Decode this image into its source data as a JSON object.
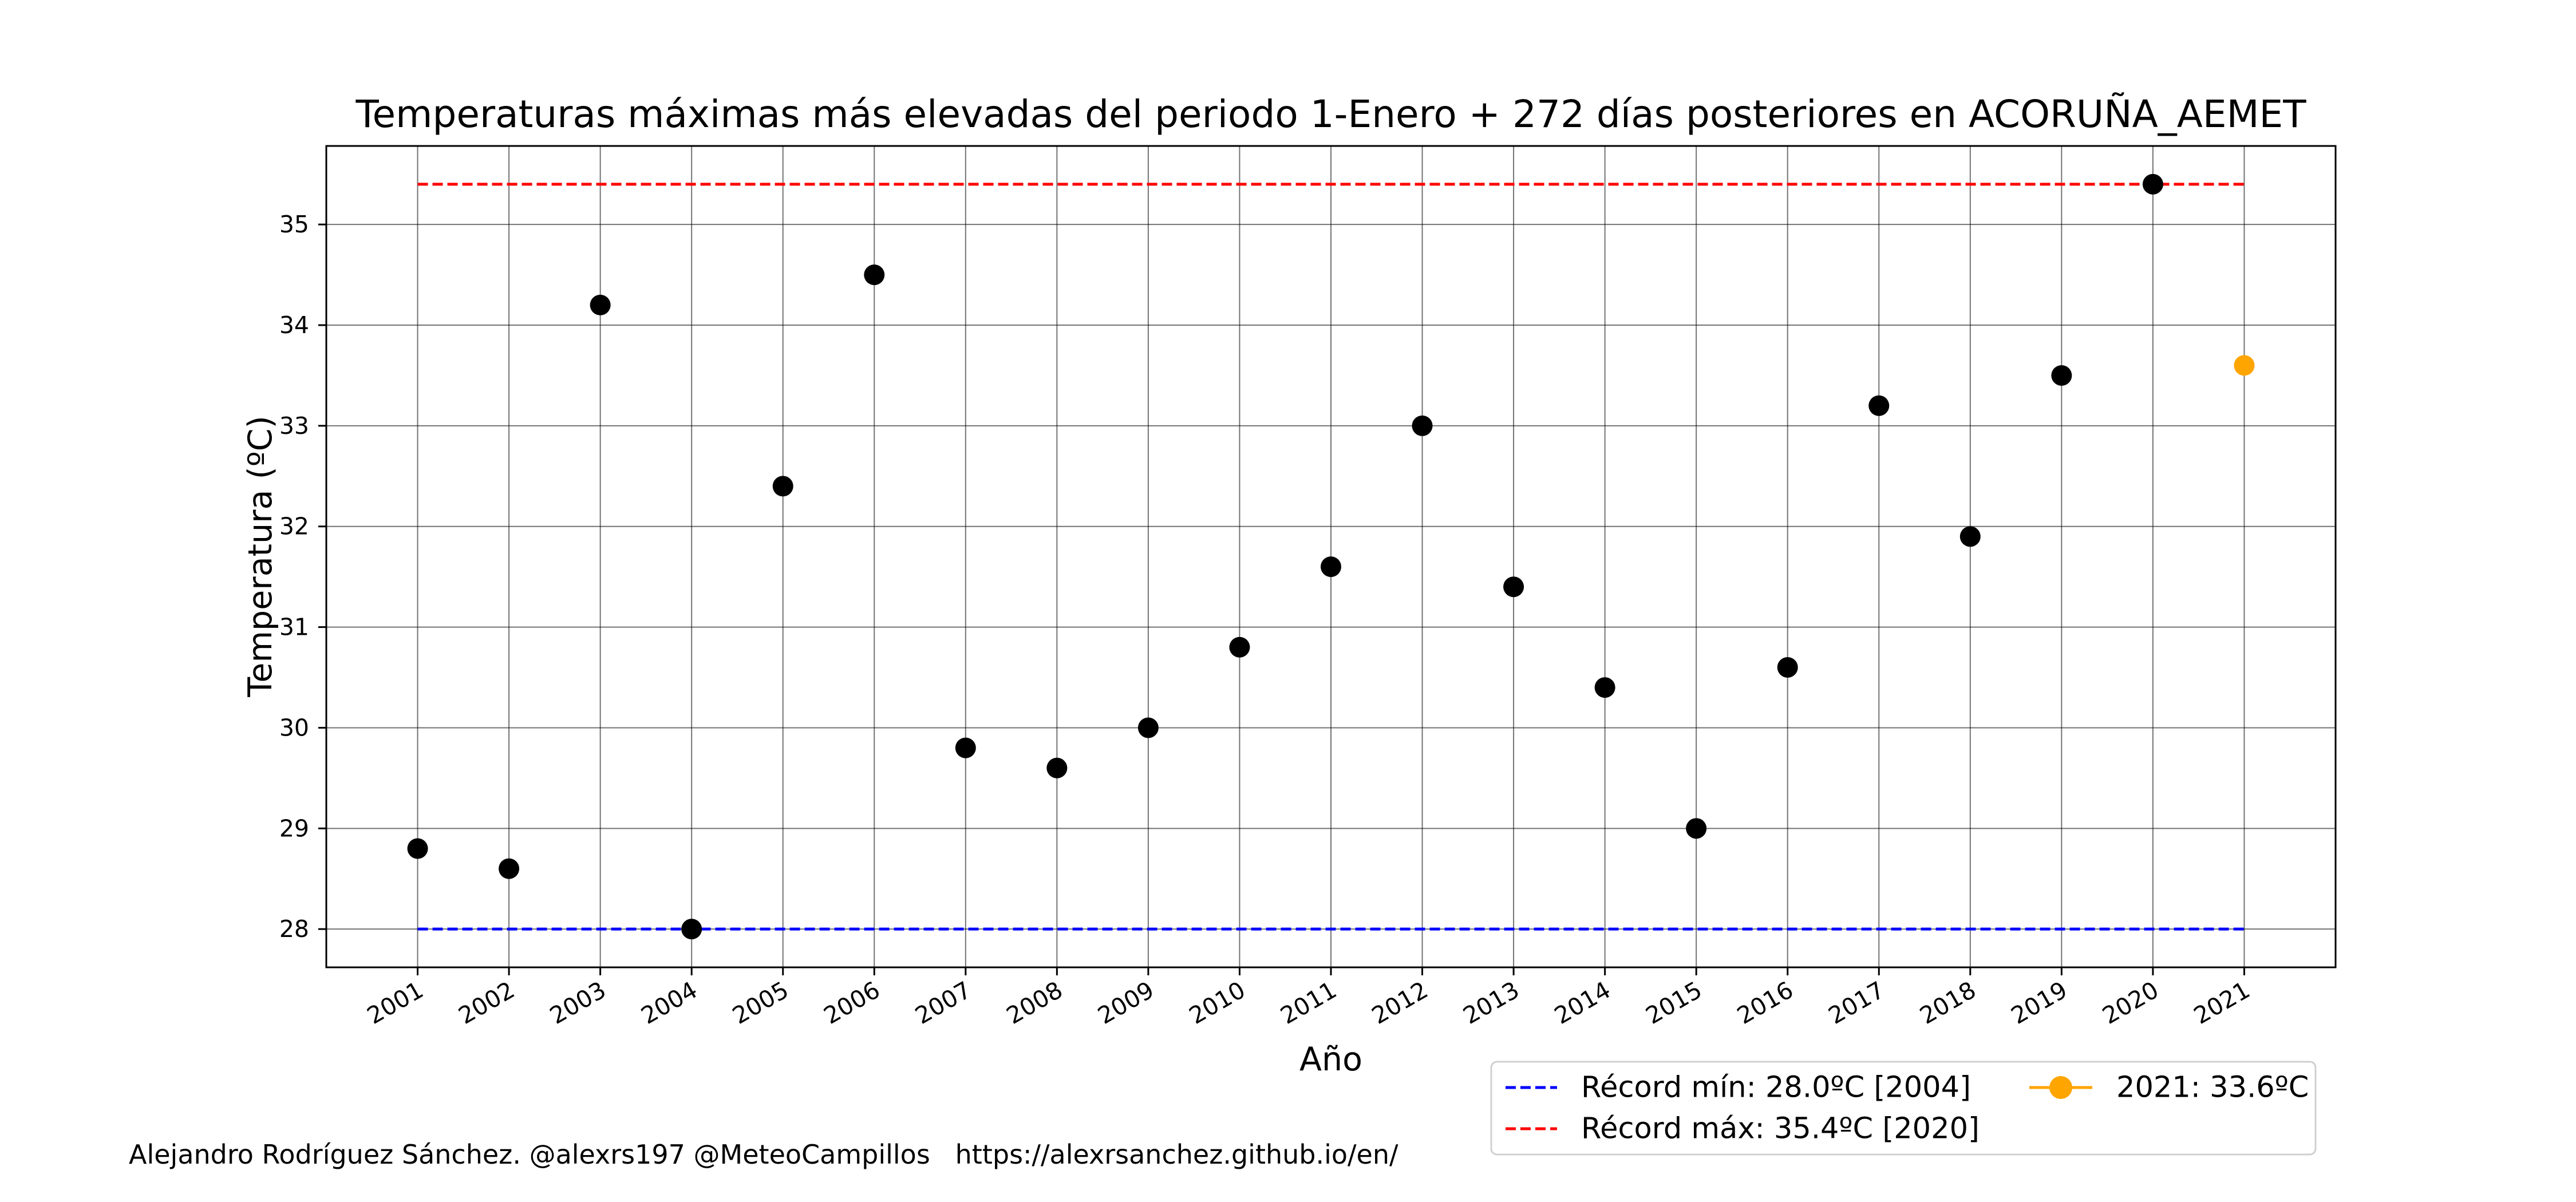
{
  "chart_data": {
    "type": "scatter",
    "title": "Temperaturas máximas más elevadas del periodo 1-Enero + 272 días posteriores en ACORUÑA_AEMET",
    "xlabel": "Año",
    "ylabel": "Temperatura (ºC)",
    "x_ticks": [
      "2001",
      "2002",
      "2003",
      "2004",
      "2005",
      "2006",
      "2007",
      "2008",
      "2009",
      "2010",
      "2011",
      "2012",
      "2013",
      "2014",
      "2015",
      "2016",
      "2017",
      "2018",
      "2019",
      "2020",
      "2021"
    ],
    "y_ticks": [
      "28",
      "29",
      "30",
      "31",
      "32",
      "33",
      "34",
      "35"
    ],
    "xlim": [
      2000,
      2022
    ],
    "ylim": [
      27.62,
      35.78
    ],
    "grid": true,
    "series": [
      {
        "x": [
          2001,
          2002,
          2003,
          2004,
          2005,
          2006,
          2007,
          2008,
          2009,
          2010,
          2011,
          2012,
          2013,
          2014,
          2015,
          2016,
          2017,
          2018,
          2019,
          2020
        ],
        "values": [
          28.8,
          28.6,
          34.2,
          28.0,
          32.4,
          34.5,
          29.8,
          29.6,
          30.0,
          30.8,
          31.6,
          33.0,
          31.4,
          30.4,
          29.0,
          30.6,
          33.2,
          31.9,
          33.5,
          35.4
        ],
        "color": "#000000"
      },
      {
        "name": "2021: 33.6ºC",
        "x": [
          2021
        ],
        "values": [
          33.6
        ],
        "color": "#ffa500"
      }
    ],
    "reference_lines": [
      {
        "name": "Récord mín: 28.0ºC [2004]",
        "value": 28.0,
        "x_range": [
          2001,
          2021
        ],
        "color": "#0000ff",
        "style": "dashed"
      },
      {
        "name": "Récord máx: 35.4ºC [2020]",
        "value": 35.4,
        "x_range": [
          2001,
          2021
        ],
        "color": "#ff0000",
        "style": "dashed"
      }
    ],
    "legend": {
      "placement": "below-right",
      "entries": [
        {
          "label": "Récord mín: 28.0ºC [2004]",
          "color": "#0000ff",
          "style": "dashed"
        },
        {
          "label": "Récord máx: 35.4ºC [2020]",
          "color": "#ff0000",
          "style": "dashed"
        },
        {
          "label": "2021: 33.6ºC",
          "color": "#ffa500",
          "style": "line-marker"
        }
      ]
    },
    "footer": "Alejandro Rodríguez Sánchez. @alexrs197 @MeteoCampillos   https://alexrsanchez.github.io/en/"
  }
}
